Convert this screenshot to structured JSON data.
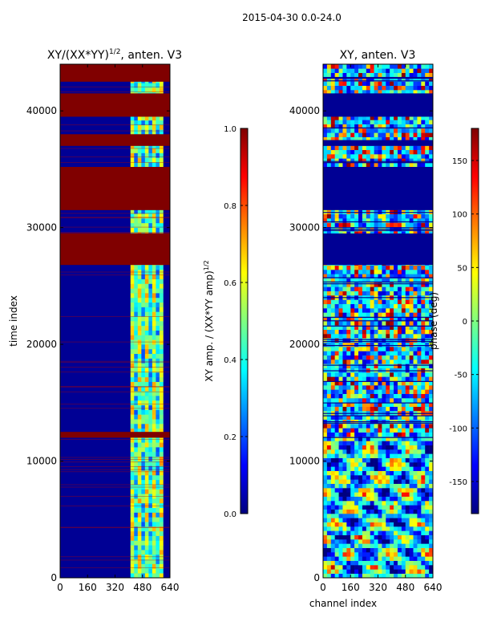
{
  "figure": {
    "suptitle": "2015-04-30 0.0-24.0"
  },
  "chart_data": [
    {
      "type": "heatmap",
      "title_prefix": "XY/(XX*YY)",
      "title_sup": "1/2",
      "title_suffix": ", anten. V3",
      "xlabel": "",
      "ylabel": "time index",
      "xlim": [
        0,
        640
      ],
      "ylim": [
        0,
        44000
      ],
      "xticks": [
        "0",
        "160",
        "320",
        "480",
        "640"
      ],
      "yticks": [
        "0",
        "10000",
        "20000",
        "30000",
        "40000"
      ],
      "colormap": "jet",
      "colorbar": {
        "label_prefix": "XY amp. / (XX*YY amp)",
        "label_sup": "1/2",
        "range": [
          0.0,
          1.0
        ],
        "ticks": [
          "0.0",
          "0.2",
          "0.4",
          "0.6",
          "0.8",
          "1.0"
        ]
      },
      "saturated_time_bands": [
        [
          12000,
          12500
        ],
        [
          26800,
          29500
        ],
        [
          31500,
          35200
        ],
        [
          37000,
          38000
        ],
        [
          39500,
          41500
        ],
        [
          42500,
          44000
        ]
      ],
      "active_channel_range": [
        410,
        600
      ]
    },
    {
      "type": "heatmap",
      "title": "XY, anten. V3",
      "xlabel": "channel index",
      "ylabel": "",
      "xlim": [
        0,
        640
      ],
      "ylim": [
        0,
        44000
      ],
      "xticks": [
        "0",
        "160",
        "320",
        "480",
        "640"
      ],
      "yticks": [
        "0",
        "10000",
        "20000",
        "30000",
        "40000"
      ],
      "colormap": "jet",
      "colorbar": {
        "label": "phase (deg)",
        "range": [
          -180,
          180
        ],
        "ticks": [
          "-150",
          "-100",
          "-50",
          "0",
          "50",
          "100",
          "150"
        ]
      },
      "masked_time_bands": [
        [
          26800,
          29500
        ],
        [
          31500,
          35200
        ],
        [
          37000,
          37500
        ],
        [
          39500,
          41500
        ]
      ]
    }
  ],
  "colors": {
    "jet_low": "#00007f",
    "jet_high": "#7f0000"
  }
}
